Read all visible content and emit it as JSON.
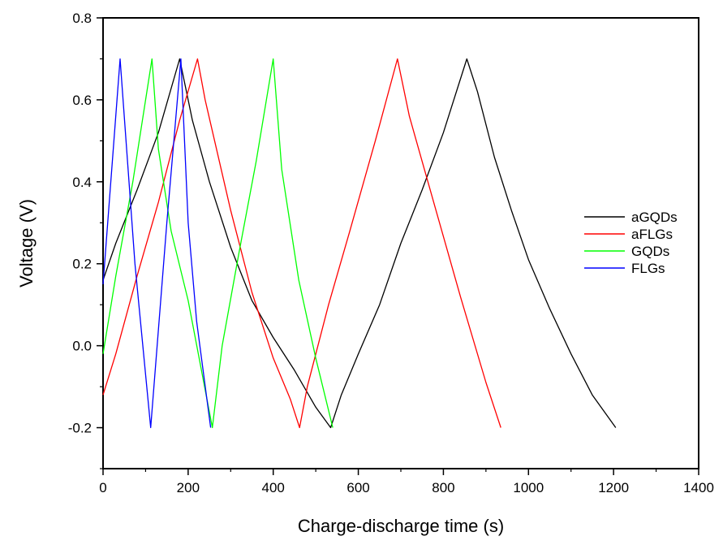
{
  "chart_data": {
    "type": "line",
    "title": "",
    "xlabel": "Charge-discharge time (s)",
    "ylabel": "Voltage (V)",
    "xlim": [
      0,
      1400
    ],
    "ylim": [
      -0.3,
      0.8
    ],
    "x_ticks": [
      0,
      200,
      400,
      600,
      800,
      1000,
      1200,
      1400
    ],
    "y_ticks": [
      -0.2,
      0.0,
      0.2,
      0.4,
      0.6,
      0.8
    ],
    "x_tick_labels": [
      "0",
      "200",
      "400",
      "600",
      "800",
      "1000",
      "1200",
      "1400"
    ],
    "y_tick_labels": [
      "-0.2",
      "0.0",
      "0.2",
      "0.4",
      "0.6",
      "0.8"
    ],
    "grid": false,
    "legend_position": "right",
    "series": [
      {
        "name": "aGQDs",
        "color": "#000000",
        "points": [
          [
            0,
            0.16
          ],
          [
            30,
            0.25
          ],
          [
            80,
            0.38
          ],
          [
            130,
            0.52
          ],
          [
            180,
            0.7
          ],
          [
            210,
            0.55
          ],
          [
            250,
            0.4
          ],
          [
            300,
            0.24
          ],
          [
            350,
            0.11
          ],
          [
            400,
            0.02
          ],
          [
            450,
            -0.06
          ],
          [
            500,
            -0.15
          ],
          [
            535,
            -0.2
          ],
          [
            560,
            -0.12
          ],
          [
            600,
            -0.02
          ],
          [
            650,
            0.1
          ],
          [
            700,
            0.25
          ],
          [
            750,
            0.38
          ],
          [
            800,
            0.52
          ],
          [
            855,
            0.7
          ],
          [
            880,
            0.62
          ],
          [
            920,
            0.46
          ],
          [
            960,
            0.33
          ],
          [
            1000,
            0.21
          ],
          [
            1050,
            0.09
          ],
          [
            1100,
            -0.02
          ],
          [
            1150,
            -0.12
          ],
          [
            1205,
            -0.2
          ]
        ]
      },
      {
        "name": "aFLGs",
        "color": "#ff0000",
        "points": [
          [
            0,
            -0.12
          ],
          [
            30,
            -0.02
          ],
          [
            80,
            0.17
          ],
          [
            130,
            0.35
          ],
          [
            180,
            0.55
          ],
          [
            222,
            0.7
          ],
          [
            240,
            0.6
          ],
          [
            300,
            0.33
          ],
          [
            350,
            0.13
          ],
          [
            400,
            -0.03
          ],
          [
            440,
            -0.13
          ],
          [
            462,
            -0.2
          ],
          [
            480,
            -0.1
          ],
          [
            530,
            0.1
          ],
          [
            580,
            0.28
          ],
          [
            640,
            0.5
          ],
          [
            692,
            0.7
          ],
          [
            720,
            0.56
          ],
          [
            780,
            0.34
          ],
          [
            840,
            0.12
          ],
          [
            900,
            -0.09
          ],
          [
            935,
            -0.2
          ]
        ]
      },
      {
        "name": "GQDs",
        "color": "#00ff00",
        "points": [
          [
            0,
            -0.02
          ],
          [
            30,
            0.17
          ],
          [
            70,
            0.4
          ],
          [
            115,
            0.7
          ],
          [
            130,
            0.48
          ],
          [
            160,
            0.28
          ],
          [
            200,
            0.11
          ],
          [
            257,
            -0.2
          ],
          [
            280,
            0.0
          ],
          [
            320,
            0.23
          ],
          [
            360,
            0.45
          ],
          [
            400,
            0.7
          ],
          [
            420,
            0.43
          ],
          [
            460,
            0.16
          ],
          [
            500,
            -0.03
          ],
          [
            540,
            -0.2
          ]
        ]
      },
      {
        "name": "FLGs",
        "color": "#0000ff",
        "points": [
          [
            0,
            0.15
          ],
          [
            40,
            0.7
          ],
          [
            75,
            0.2
          ],
          [
            112,
            -0.2
          ],
          [
            150,
            0.3
          ],
          [
            183,
            0.7
          ],
          [
            200,
            0.3
          ],
          [
            220,
            0.06
          ],
          [
            253,
            -0.2
          ]
        ]
      }
    ]
  }
}
